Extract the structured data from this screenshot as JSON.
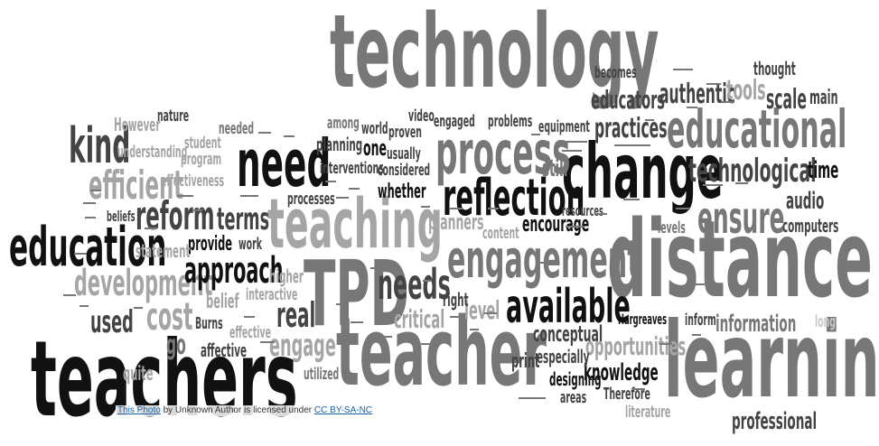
{
  "attribution": {
    "link_text": "This Photo",
    "middle_text": " by Unknown Author is licensed under ",
    "license_text": "CC BY-SA-NC"
  },
  "words": {
    "technology": "technology",
    "distance": "distance",
    "learning": "learning",
    "teachers": "teachers",
    "teacher": "teacher",
    "tpd": "TPD",
    "teaching": "teaching",
    "change": "change",
    "need": "need",
    "education": "education",
    "process": "process",
    "reflection": "reflection",
    "educational": "educational",
    "engagement": "engagement",
    "available": "available",
    "kind": "kind",
    "reform": "reform",
    "efficient": "efficient",
    "development": "development",
    "approach": "approach",
    "ensure": "ensure",
    "technological": "technological",
    "needs": "needs",
    "cost": "cost",
    "real": "real",
    "engage": "engage",
    "used": "used",
    "go": "go",
    "terms": "terms",
    "professional": "professional",
    "opportunities": "opportunities",
    "information": "information",
    "knowledge": "knowledge",
    "practices": "practices",
    "educators": "educators",
    "authentic": "authentic",
    "tools": "tools",
    "scale": "scale",
    "main": "main",
    "audio": "audio",
    "time": "time",
    "computers": "computers",
    "becomes": "becomes",
    "thought": "thought",
    "encourage": "encourage",
    "level": "level",
    "levels": "levels",
    "critical": "critical",
    "whether": "whether",
    "planners": "planners",
    "still": "still",
    "one": "one",
    "usually": "usually",
    "considered": "considered",
    "interventions": "interventions",
    "planning": "planning",
    "processes": "processes",
    "provide": "provide",
    "belief": "belief",
    "beliefs": "beliefs",
    "statement": "statement",
    "affective": "affective",
    "burns": "Burns",
    "effective": "effective",
    "utilized": "utilized",
    "quite": "quite",
    "conceptual": "conceptual",
    "especially": "especially",
    "designing": "designing",
    "areas": "areas",
    "therefore": "Therefore",
    "hargreaves": "Hargreaves",
    "inform": "inform",
    "long": "long",
    "literature": "literature",
    "print": "print",
    "right": "right",
    "content": "content",
    "resources": "resources",
    "equipment": "equipment",
    "problems": "problems",
    "engaged": "engaged",
    "proven": "proven",
    "video": "video",
    "world": "world",
    "among": "among",
    "needed": "needed",
    "student": "student",
    "understanding": "understanding",
    "program": "program",
    "effectiveness": "effectiveness",
    "however": "However",
    "nature": "nature",
    "work": "work",
    "higher": "higher",
    "interactive": "interactive"
  }
}
